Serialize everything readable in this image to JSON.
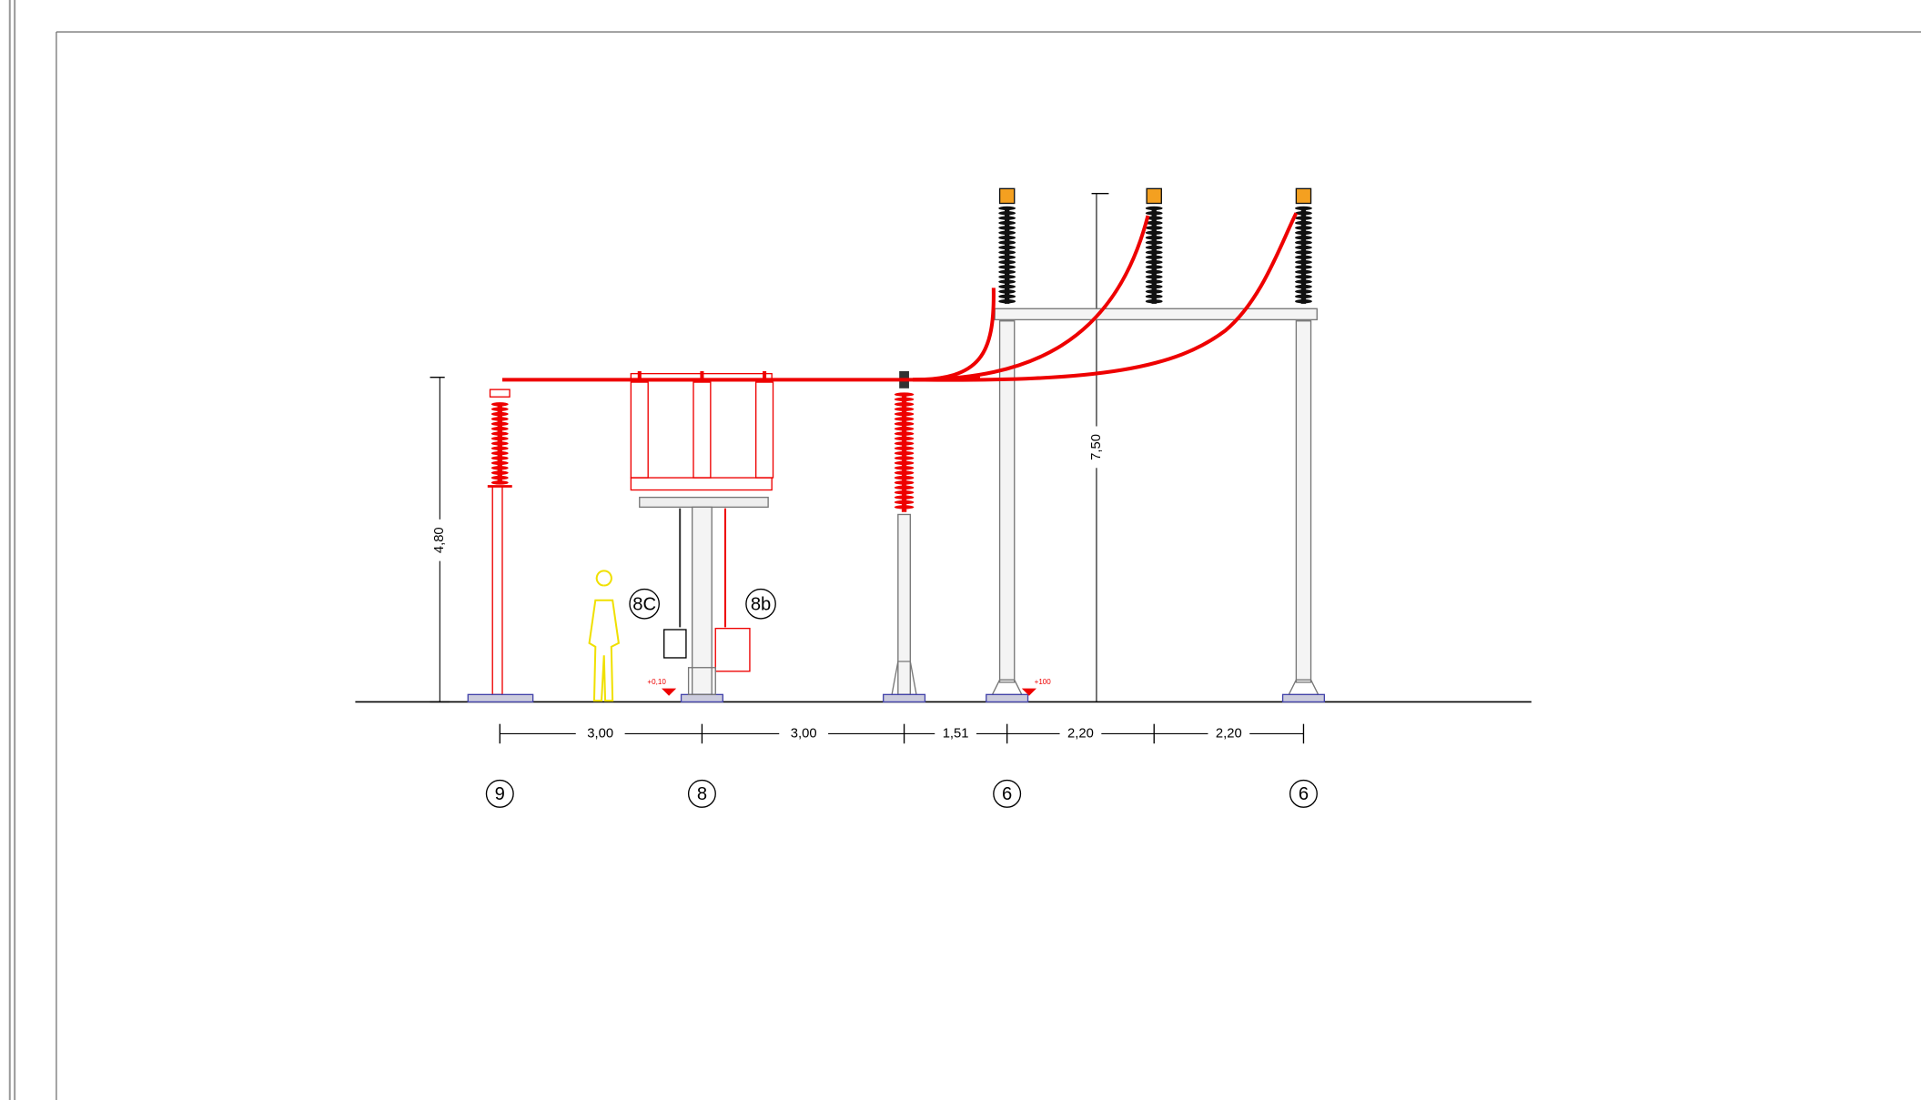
{
  "dimensions": {
    "horizontal": [
      "3,00",
      "3,00",
      "1,51",
      "2,20",
      "2,20"
    ],
    "vertical": [
      "4,80",
      "7,50"
    ]
  },
  "equipment_labels": [
    "9",
    "8",
    "6",
    "6"
  ],
  "detail_labels": [
    "8C",
    "8b"
  ],
  "elevations": [
    "+0,10",
    "+100"
  ]
}
